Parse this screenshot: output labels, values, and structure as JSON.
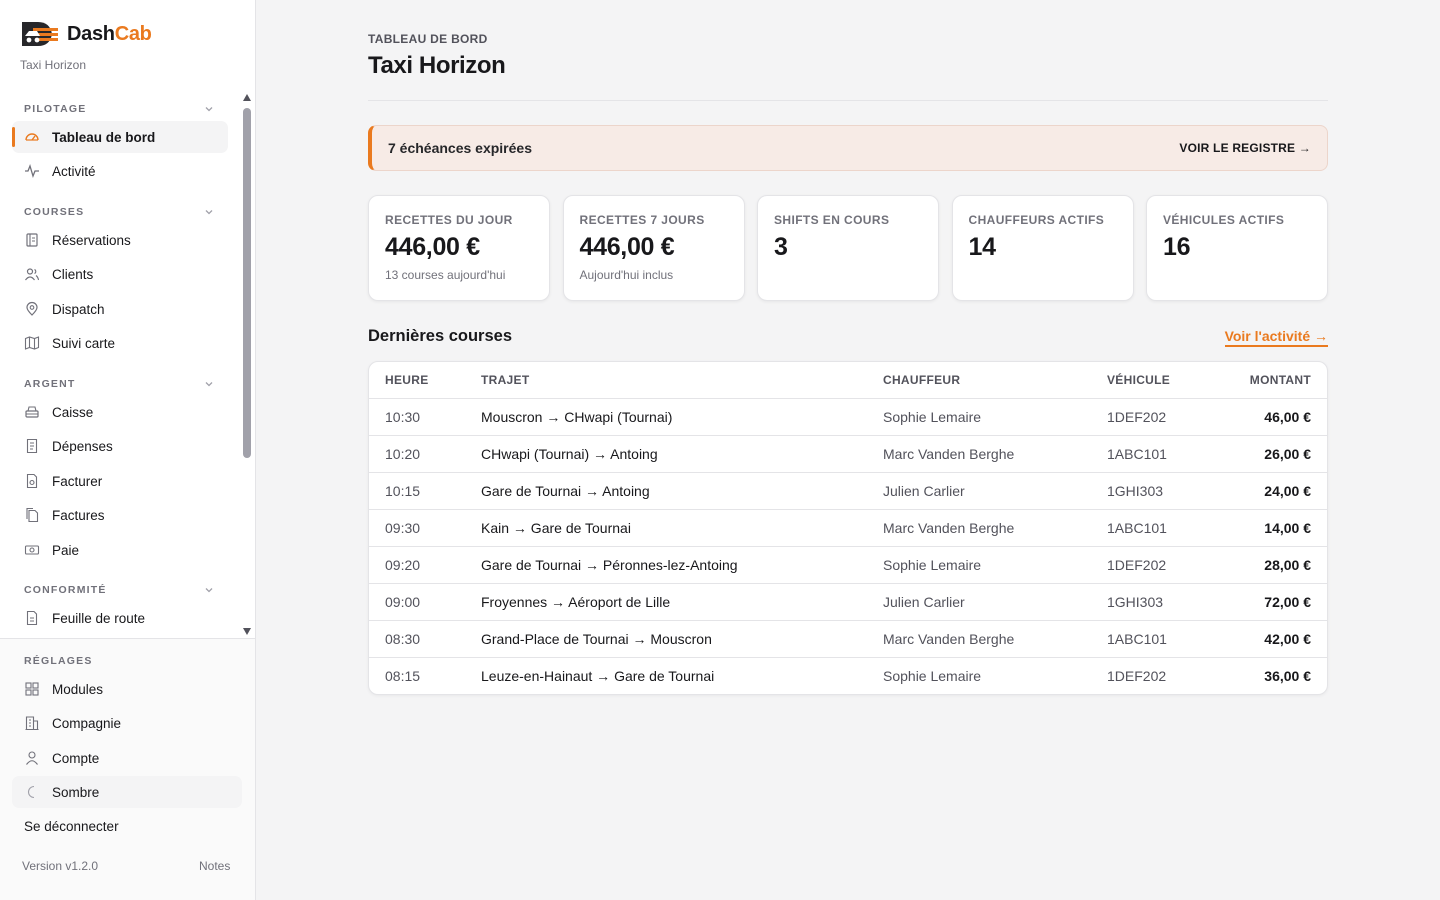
{
  "brand": {
    "name_dash": "Dash",
    "name_cab": "Cab",
    "company": "Taxi Horizon",
    "accent": "#ea7a1f"
  },
  "nav": {
    "sections": [
      {
        "title": "PILOTAGE",
        "items": [
          {
            "label": "Tableau de bord",
            "icon": "gauge-icon",
            "active": true
          },
          {
            "label": "Activité",
            "icon": "activity-icon"
          }
        ]
      },
      {
        "title": "COURSES",
        "items": [
          {
            "label": "Réservations",
            "icon": "booking-icon"
          },
          {
            "label": "Clients",
            "icon": "users-icon"
          },
          {
            "label": "Dispatch",
            "icon": "location-pin-icon"
          },
          {
            "label": "Suivi carte",
            "icon": "map-icon"
          }
        ]
      },
      {
        "title": "ARGENT",
        "items": [
          {
            "label": "Caisse",
            "icon": "cash-register-icon"
          },
          {
            "label": "Dépenses",
            "icon": "receipt-icon"
          },
          {
            "label": "Facturer",
            "icon": "invoice-create-icon"
          },
          {
            "label": "Factures",
            "icon": "documents-icon"
          },
          {
            "label": "Paie",
            "icon": "banknote-icon"
          }
        ]
      },
      {
        "title": "CONFORMITÉ",
        "items": [
          {
            "label": "Feuille de route",
            "icon": "route-sheet-icon"
          }
        ]
      }
    ]
  },
  "settings": {
    "title": "RÉGLAGES",
    "items": [
      {
        "label": "Modules",
        "icon": "grid-icon"
      },
      {
        "label": "Compagnie",
        "icon": "building-icon"
      },
      {
        "label": "Compte",
        "icon": "user-icon"
      },
      {
        "label": "Sombre",
        "icon": "moon-icon"
      }
    ],
    "logout": "Se déconnecter",
    "version": "Version v1.2.0",
    "notes": "Notes"
  },
  "header": {
    "eyebrow": "TABLEAU DE BORD",
    "title": "Taxi Horizon"
  },
  "alert": {
    "text": "7 échéances expirées",
    "link": "VOIR LE REGISTRE →"
  },
  "stats": [
    {
      "label": "RECETTES DU JOUR",
      "value": "446,00 €",
      "sub": "13 courses aujourd'hui"
    },
    {
      "label": "RECETTES 7 JOURS",
      "value": "446,00 €",
      "sub": "Aujourd'hui inclus"
    },
    {
      "label": "SHIFTS EN COURS",
      "value": "3",
      "sub": ""
    },
    {
      "label": "CHAUFFEURS ACTIFS",
      "value": "14",
      "sub": ""
    },
    {
      "label": "VÉHICULES ACTIFS",
      "value": "16",
      "sub": ""
    }
  ],
  "rides": {
    "title": "Dernières courses",
    "link": "Voir l'activité →",
    "columns": {
      "heure": "HEURE",
      "trajet": "TRAJET",
      "chauffeur": "CHAUFFEUR",
      "vehicule": "VÉHICULE",
      "montant": "MONTANT"
    },
    "rows": [
      {
        "heure": "10:30",
        "trajet": "Mouscron → CHwapi (Tournai)",
        "chauffeur": "Sophie Lemaire",
        "vehicule": "1DEF202",
        "montant": "46,00 €"
      },
      {
        "heure": "10:20",
        "trajet": "CHwapi (Tournai) → Antoing",
        "chauffeur": "Marc Vanden Berghe",
        "vehicule": "1ABC101",
        "montant": "26,00 €"
      },
      {
        "heure": "10:15",
        "trajet": "Gare de Tournai → Antoing",
        "chauffeur": "Julien Carlier",
        "vehicule": "1GHI303",
        "montant": "24,00 €"
      },
      {
        "heure": "09:30",
        "trajet": "Kain → Gare de Tournai",
        "chauffeur": "Marc Vanden Berghe",
        "vehicule": "1ABC101",
        "montant": "14,00 €"
      },
      {
        "heure": "09:20",
        "trajet": "Gare de Tournai → Péronnes-lez-Antoing",
        "chauffeur": "Sophie Lemaire",
        "vehicule": "1DEF202",
        "montant": "28,00 €"
      },
      {
        "heure": "09:00",
        "trajet": "Froyennes → Aéroport de Lille",
        "chauffeur": "Julien Carlier",
        "vehicule": "1GHI303",
        "montant": "72,00 €"
      },
      {
        "heure": "08:30",
        "trajet": "Grand-Place de Tournai → Mouscron",
        "chauffeur": "Marc Vanden Berghe",
        "vehicule": "1ABC101",
        "montant": "42,00 €"
      },
      {
        "heure": "08:15",
        "trajet": "Leuze-en-Hainaut → Gare de Tournai",
        "chauffeur": "Sophie Lemaire",
        "vehicule": "1DEF202",
        "montant": "36,00 €"
      }
    ]
  }
}
